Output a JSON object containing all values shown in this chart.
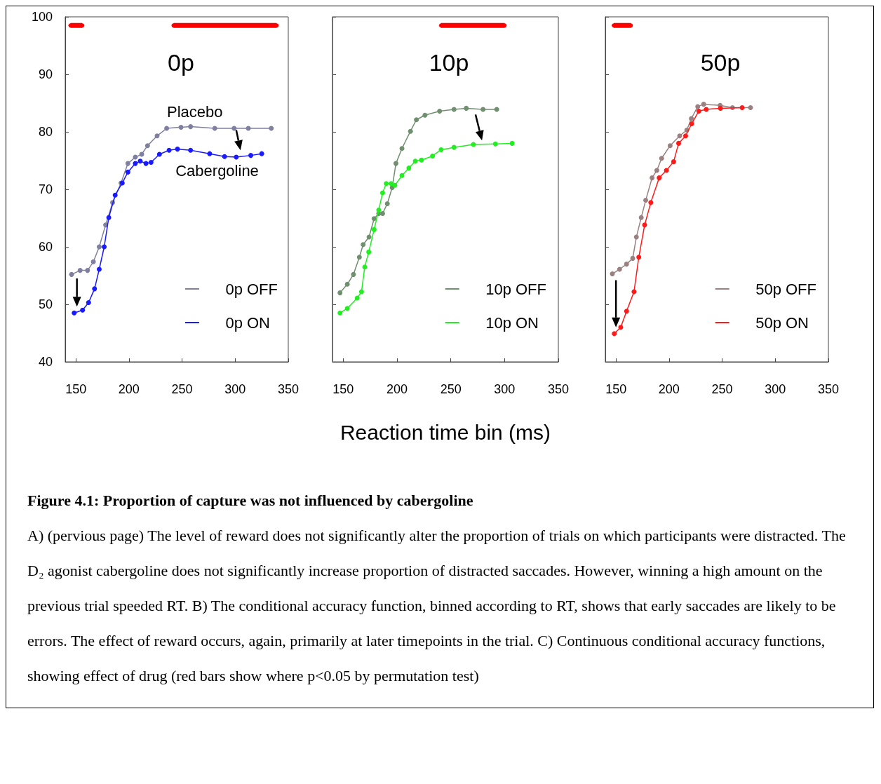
{
  "chart_data": [
    {
      "type": "line",
      "title": "0p",
      "xlim": [
        140,
        350
      ],
      "xticks": [
        150,
        200,
        250,
        300,
        350
      ],
      "ylim": [
        40,
        100
      ],
      "yticks": [
        40,
        50,
        60,
        70,
        80,
        90,
        100
      ],
      "grid": false,
      "legend": "bottom right",
      "marker": "circle",
      "line_style": "solid",
      "annotations": [
        "Placebo",
        "Cabergoline"
      ],
      "series": [
        {
          "color": "#ff0000",
          "x": [
            145,
            156,
            200,
            242,
            339
          ],
          "values": [
            98.5,
            98.5,
            null,
            98.5,
            98.5
          ]
        },
        {
          "name": "0p OFF",
          "color": "#7f7f9f",
          "x": [
            146,
            154,
            161,
            166.5,
            172,
            178,
            184.6,
            192.5,
            199,
            206,
            212,
            217.5,
            226.5,
            235.5,
            249,
            258,
            280.8,
            299,
            312.4,
            334
          ],
          "values": [
            55.2,
            55.9,
            55.9,
            57.4,
            60.0,
            63.8,
            67.7,
            71.1,
            74.5,
            75.6,
            76.1,
            77.6,
            79.3,
            80.6,
            80.8,
            80.9,
            80.6,
            80.6,
            80.6,
            80.6
          ]
        },
        {
          "name": "0p ON",
          "color": "#1a1aff",
          "x": [
            148.4,
            156.3,
            162,
            167.6,
            172,
            176.7,
            181,
            187,
            193.7,
            199,
            206,
            210.6,
            216,
            220.8,
            228.7,
            237.8,
            245.7,
            258,
            276,
            290,
            301,
            314.7,
            325
          ],
          "values": [
            48.5,
            49.0,
            50.3,
            52.7,
            56.1,
            60.0,
            65.1,
            69.0,
            71.1,
            73.0,
            74.5,
            74.9,
            74.5,
            74.7,
            76.1,
            76.8,
            77.0,
            76.8,
            76.2,
            75.7,
            75.6,
            75.9,
            76.2
          ]
        }
      ]
    },
    {
      "type": "line",
      "title": "10p",
      "xlabel": "Reaction time bin (ms)",
      "xlim": [
        140,
        350
      ],
      "xticks": [
        150,
        200,
        250,
        300,
        350
      ],
      "ylim": [
        40,
        100
      ],
      "yticks": [
        40,
        50,
        60,
        70,
        80,
        90,
        100
      ],
      "tick_labels": "x",
      "grid": false,
      "legend": "bottom right",
      "marker": "circle",
      "line_style": "solid",
      "series": [
        {
          "color": "#ff0000",
          "x": [
            241,
            300
          ],
          "values": [
            98.5,
            98.5
          ]
        },
        {
          "name": "10p OFF",
          "color": "#6f8f6f",
          "x": [
            147,
            153.8,
            159.5,
            165,
            168.5,
            174,
            178.7,
            183,
            186.6,
            191,
            195.5,
            199,
            204.6,
            212.5,
            218,
            226,
            239.6,
            253,
            264.4,
            280,
            292.7
          ],
          "values": [
            52.0,
            53.5,
            55.2,
            58.2,
            60.4,
            61.7,
            64.9,
            65.8,
            65.8,
            67.5,
            70.3,
            74.5,
            77.1,
            80.1,
            82.1,
            82.9,
            83.6,
            83.9,
            84.1,
            83.9,
            83.9
          ]
        },
        {
          "name": "10p ON",
          "color": "#22ee22",
          "x": [
            147,
            153.8,
            163,
            167,
            170,
            173.7,
            178.7,
            183,
            186.6,
            190,
            194.5,
            198,
            204.6,
            211,
            217,
            222.7,
            233,
            241,
            253,
            271,
            291.5,
            307
          ],
          "values": [
            48.5,
            49.3,
            51.1,
            52.2,
            56.5,
            59.1,
            63.0,
            66.4,
            69.4,
            71.0,
            71.0,
            70.7,
            72.4,
            73.7,
            74.9,
            75.1,
            75.8,
            76.9,
            77.3,
            77.8,
            77.9,
            78.0
          ]
        }
      ]
    },
    {
      "type": "line",
      "title": "50p",
      "xlim": [
        140,
        350
      ],
      "xticks": [
        150,
        200,
        250,
        300,
        350
      ],
      "ylim": [
        40,
        100
      ],
      "yticks": [
        40,
        50,
        60,
        70,
        80,
        90,
        100
      ],
      "tick_labels": "x",
      "grid": false,
      "legend": "bottom right",
      "marker": "circle",
      "line_style": "solid",
      "series": [
        {
          "color": "#ff0000",
          "x": [
            148,
            164
          ],
          "values": [
            98.5,
            98.5
          ]
        },
        {
          "name": "50p OFF",
          "color": "#9a8080",
          "x": [
            146.6,
            153.4,
            160,
            165.8,
            169.2,
            173.8,
            178,
            184,
            188.5,
            193,
            201,
            210,
            216.7,
            221,
            227,
            232.6,
            248,
            259.7,
            276.7
          ],
          "values": [
            55.3,
            56.1,
            57.0,
            58.0,
            61.7,
            65.1,
            68.1,
            72.0,
            73.3,
            75.4,
            77.6,
            79.3,
            80.3,
            82.3,
            84.4,
            84.8,
            84.6,
            84.2,
            84.2
          ]
        },
        {
          "name": "50p ON",
          "color": "#ff1a1a",
          "x": [
            148.4,
            154.5,
            160,
            167,
            171.5,
            177,
            182.8,
            190.7,
            197.5,
            204.3,
            209,
            215.6,
            221.3,
            228,
            235,
            248.4,
            268.8
          ],
          "values": [
            44.9,
            46.0,
            48.8,
            52.2,
            58.2,
            63.8,
            67.7,
            72.0,
            73.3,
            74.8,
            78.0,
            79.3,
            81.4,
            83.6,
            83.9,
            84.1,
            84.2
          ]
        }
      ]
    },
    {
      "type": "other",
      "title": "Figure 4.1: Proportion of capture was not influenced by cabergoline",
      "annotations": [
        "A) (pervious page) The level of reward does not significantly alter the proportion of trials on which participants were distracted. The D₂ agonist cabergoline does not significantly increase proportion of distracted saccades. However, winning a high amount on the previous trial speeded RT. B) The conditional accuracy function, binned according to RT, shows that early saccades are likely to be errors. The effect of reward occurs, again, primarily at later timepoints in the trial. C) Continuous conditional accuracy functions, showing effect of drug (red bars show where p<0.05 by permutation test)"
      ]
    }
  ]
}
